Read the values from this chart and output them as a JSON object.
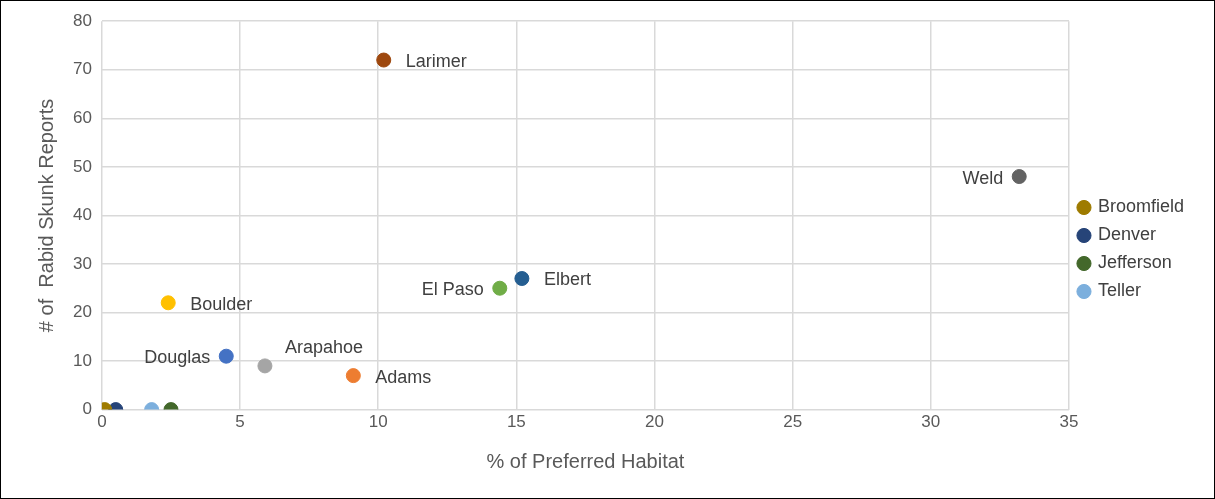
{
  "chart_data": {
    "type": "scatter",
    "xlabel": "% of Preferred Habitat",
    "ylabel": "# of  Rabid Skunk Reports",
    "xlim": [
      0,
      35
    ],
    "xticks": [
      0,
      5,
      10,
      15,
      20,
      25,
      30,
      35
    ],
    "ylim": [
      0,
      80
    ],
    "yticks": [
      0,
      10,
      20,
      30,
      40,
      50,
      60,
      70,
      80
    ],
    "grid": true,
    "legend": "right",
    "marker": "circle",
    "series": [
      {
        "name": "Broomfield",
        "color": "#9e7b00",
        "x": [
          0.1
        ],
        "values": [
          0
        ]
      },
      {
        "name": "Denver",
        "color": "#264478",
        "x": [
          0.5
        ],
        "values": [
          0
        ]
      },
      {
        "name": "Jefferson",
        "color": "#43682b",
        "x": [
          2.5
        ],
        "values": [
          0
        ]
      },
      {
        "name": "Teller",
        "color": "#7cafdd",
        "x": [
          1.8
        ],
        "values": [
          0
        ]
      },
      {
        "color": "#9e480e",
        "x": [
          10.2
        ],
        "values": [
          72
        ]
      },
      {
        "color": "#636363",
        "x": [
          33.2
        ],
        "values": [
          48
        ]
      },
      {
        "color": "#255e91",
        "x": [
          15.2
        ],
        "values": [
          27
        ]
      },
      {
        "color": "#70ad47",
        "x": [
          14.4
        ],
        "values": [
          25
        ]
      },
      {
        "color": "#ffc000",
        "x": [
          2.4
        ],
        "values": [
          22
        ]
      },
      {
        "color": "#a5a5a5",
        "x": [
          5.9
        ],
        "values": [
          9
        ]
      },
      {
        "color": "#4472c4",
        "x": [
          4.5
        ],
        "values": [
          11
        ]
      },
      {
        "color": "#ed7d31",
        "x": [
          9.1
        ],
        "values": [
          7
        ]
      }
    ],
    "annotations": [
      {
        "text": "Larimer",
        "x": 10.2,
        "y": 72
      },
      {
        "text": "Weld",
        "x": 33.2,
        "y": 48
      },
      {
        "text": "Elbert",
        "x": 15.2,
        "y": 27
      },
      {
        "text": "El Paso",
        "x": 14.4,
        "y": 25
      },
      {
        "text": "Boulder",
        "x": 2.4,
        "y": 22
      },
      {
        "text": "Arapahoe",
        "x": 5.9,
        "y": 9
      },
      {
        "text": "Douglas",
        "x": 4.5,
        "y": 11
      },
      {
        "text": "Adams",
        "x": 9.1,
        "y": 7
      }
    ]
  }
}
